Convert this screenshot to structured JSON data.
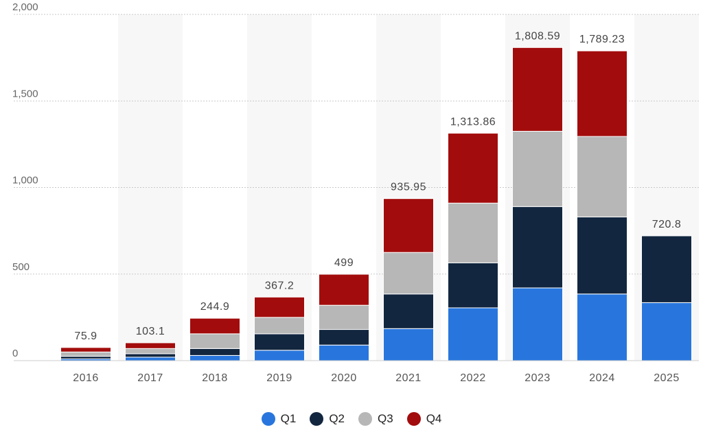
{
  "chart_data": {
    "type": "bar",
    "stacked": true,
    "categories": [
      "2016",
      "2017",
      "2018",
      "2019",
      "2020",
      "2021",
      "2022",
      "2023",
      "2024",
      "2025"
    ],
    "series": [
      {
        "name": "Q1",
        "color": "#2876dd",
        "values": [
          10,
          20,
          30,
          60,
          90,
          185,
          305,
          420,
          385,
          335
        ]
      },
      {
        "name": "Q2",
        "color": "#12263f",
        "values": [
          15,
          20,
          40,
          95,
          90,
          200,
          260,
          470,
          445,
          385.8
        ]
      },
      {
        "name": "Q3",
        "color": "#b7b7b7",
        "values": [
          25,
          30,
          85,
          95,
          140,
          240,
          345,
          435,
          465,
          0
        ]
      },
      {
        "name": "Q4",
        "color": "#a30c0c",
        "values": [
          25.9,
          33.1,
          89.9,
          117.2,
          179,
          310.95,
          403.86,
          483.59,
          494.23,
          0
        ]
      }
    ],
    "totals": [
      "75.9",
      "103.1",
      "244.9",
      "367.2",
      "499",
      "935.95",
      "1,313.86",
      "1,808.59",
      "1,789.23",
      "720.8"
    ],
    "ylim": [
      0,
      2000
    ],
    "yticks": [
      0,
      500,
      1000,
      1500,
      2000
    ],
    "ytick_labels": [
      "0",
      "500",
      "1,000",
      "1,500",
      "2,000"
    ],
    "title": "",
    "xlabel": "",
    "ylabel": "",
    "grid": true,
    "legend_position": "bottom-center"
  }
}
